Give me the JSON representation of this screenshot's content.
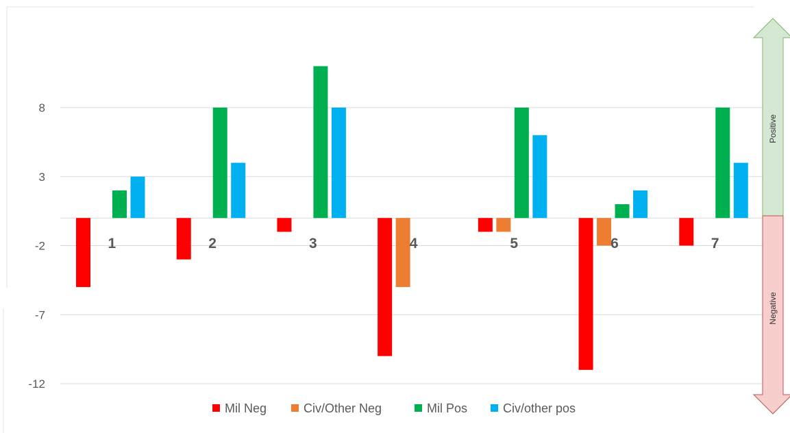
{
  "chart_data": {
    "type": "bar",
    "categories": [
      "1",
      "2",
      "3",
      "4",
      "5",
      "6",
      "7"
    ],
    "series": [
      {
        "name": "Mil Neg",
        "color": "#ff0000",
        "values": [
          -5,
          -3,
          -1,
          -10,
          -1,
          -11,
          -2
        ]
      },
      {
        "name": "Civ/Other Neg",
        "color": "#ed7d31",
        "values": [
          0,
          0,
          0,
          -5,
          -1,
          -2,
          0
        ]
      },
      {
        "name": "Mil Pos",
        "color": "#00b050",
        "values": [
          2,
          8,
          11,
          0,
          8,
          1,
          8
        ]
      },
      {
        "name": "Civ/other pos",
        "color": "#00b0f0",
        "values": [
          3,
          4,
          8,
          0,
          6,
          2,
          4
        ]
      }
    ],
    "y_ticks": [
      "8",
      "3",
      "-2",
      "-7",
      "-12"
    ],
    "ylim": [
      -12,
      13
    ],
    "grid": true,
    "legend": "bottom",
    "side_indicator": {
      "positive_label": "Positive",
      "negative_label": "Negative",
      "positive_color": "#d5e8d4",
      "negative_color": "#f8cecc",
      "positive_stroke": "#82b366",
      "negative_stroke": "#b85450"
    }
  }
}
